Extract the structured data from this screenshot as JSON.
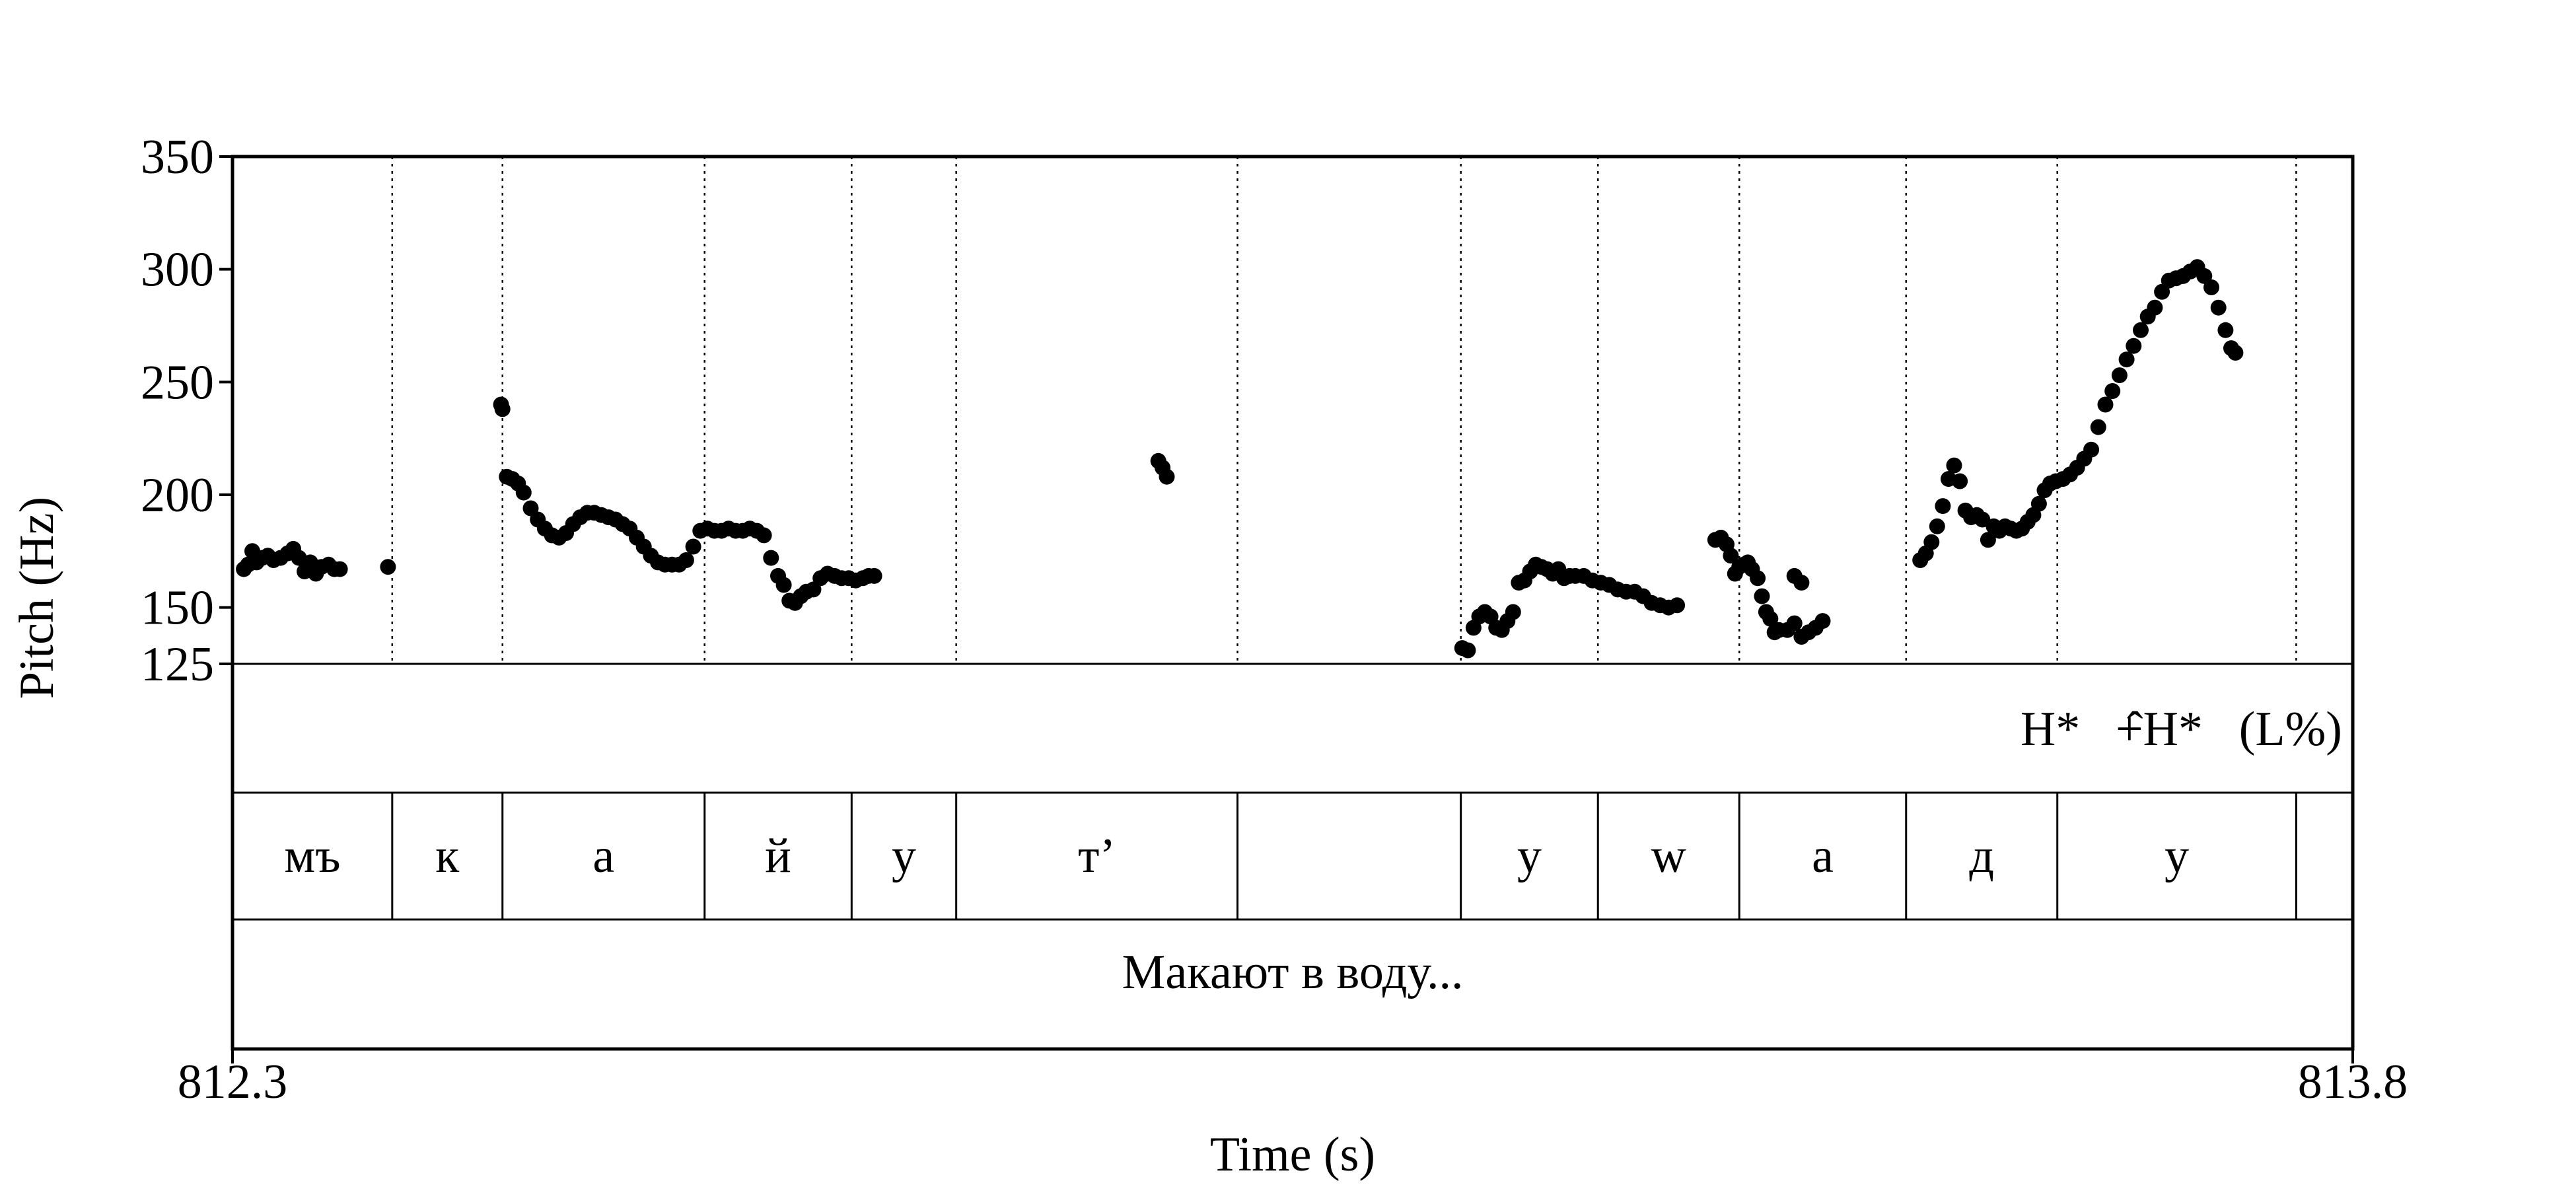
{
  "chart_data": {
    "type": "scatter",
    "title": "",
    "xlabel": "Time (s)",
    "ylabel": "Pitch (Hz)",
    "xlim": [
      812.3,
      813.8
    ],
    "ylim": [
      125,
      350
    ],
    "x_tick_labels": [
      "812.3",
      "813.8"
    ],
    "y_ticks": [
      125,
      150,
      200,
      250,
      300,
      350
    ],
    "y_tick_labels": [
      "125",
      "150",
      "200",
      "250",
      "300",
      "350"
    ],
    "grid": false,
    "legend": "none",
    "boundaries": [
      812.413,
      812.491,
      812.634,
      812.738,
      812.812,
      813.011,
      813.169,
      813.266,
      813.366,
      813.484,
      813.591,
      813.76
    ],
    "tones_tier": [
      {
        "x": 813.586,
        "text": "H*"
      },
      {
        "x": 813.642,
        "text": "+"
      },
      {
        "x": 813.667,
        "text": "ˆH*"
      },
      {
        "x": 813.756,
        "text": "(L%)"
      }
    ],
    "phones_tier": [
      {
        "start": 812.3,
        "end": 812.413,
        "text": "мъ"
      },
      {
        "start": 812.413,
        "end": 812.491,
        "text": "к"
      },
      {
        "start": 812.491,
        "end": 812.634,
        "text": "а"
      },
      {
        "start": 812.634,
        "end": 812.738,
        "text": "й"
      },
      {
        "start": 812.738,
        "end": 812.812,
        "text": "у"
      },
      {
        "start": 812.812,
        "end": 813.011,
        "text": "т’"
      },
      {
        "start": 813.011,
        "end": 813.169,
        "text": ""
      },
      {
        "start": 813.169,
        "end": 813.266,
        "text": "у"
      },
      {
        "start": 813.266,
        "end": 813.366,
        "text": "w"
      },
      {
        "start": 813.366,
        "end": 813.484,
        "text": "а"
      },
      {
        "start": 813.484,
        "end": 813.591,
        "text": "д"
      },
      {
        "start": 813.591,
        "end": 813.76,
        "text": "у"
      },
      {
        "start": 813.76,
        "end": 813.8,
        "text": ""
      }
    ],
    "phrase_tier": "Макают в воду...",
    "series": [
      {
        "values": [
          [
            812.308,
            167
          ],
          [
            812.311,
            169
          ],
          [
            812.314,
            175
          ],
          [
            812.317,
            170
          ],
          [
            812.321,
            172
          ],
          [
            812.325,
            173
          ],
          [
            812.329,
            171
          ],
          [
            812.334,
            172
          ],
          [
            812.339,
            174
          ],
          [
            812.343,
            176
          ],
          [
            812.347,
            172
          ],
          [
            812.351,
            166
          ],
          [
            812.355,
            170
          ],
          [
            812.359,
            165
          ],
          [
            812.363,
            168
          ],
          [
            812.368,
            169
          ],
          [
            812.372,
            167
          ],
          [
            812.376,
            167
          ],
          [
            812.41,
            168
          ],
          [
            812.49,
            240
          ],
          [
            812.491,
            238
          ],
          [
            812.494,
            208
          ],
          [
            812.498,
            207
          ],
          [
            812.502,
            205
          ],
          [
            812.506,
            201
          ],
          [
            812.511,
            194
          ],
          [
            812.516,
            189
          ],
          [
            812.521,
            185
          ],
          [
            812.526,
            182
          ],
          [
            812.531,
            181
          ],
          [
            812.536,
            183
          ],
          [
            812.541,
            187
          ],
          [
            812.546,
            190
          ],
          [
            812.551,
            192
          ],
          [
            812.556,
            192
          ],
          [
            812.561,
            191
          ],
          [
            812.566,
            190
          ],
          [
            812.571,
            189
          ],
          [
            812.576,
            187
          ],
          [
            812.581,
            185
          ],
          [
            812.586,
            181
          ],
          [
            812.591,
            177
          ],
          [
            812.596,
            173
          ],
          [
            812.601,
            170
          ],
          [
            812.606,
            169
          ],
          [
            812.611,
            169
          ],
          [
            812.616,
            169
          ],
          [
            812.621,
            171
          ],
          [
            812.626,
            177
          ],
          [
            812.631,
            184
          ],
          [
            812.636,
            185
          ],
          [
            812.641,
            184
          ],
          [
            812.646,
            184
          ],
          [
            812.651,
            185
          ],
          [
            812.656,
            184
          ],
          [
            812.661,
            184
          ],
          [
            812.666,
            185
          ],
          [
            812.671,
            184
          ],
          [
            812.676,
            182
          ],
          [
            812.681,
            172
          ],
          [
            812.686,
            164
          ],
          [
            812.69,
            160
          ],
          [
            812.694,
            153
          ],
          [
            812.698,
            152
          ],
          [
            812.702,
            155
          ],
          [
            812.706,
            157
          ],
          [
            812.711,
            158
          ],
          [
            812.716,
            163
          ],
          [
            812.721,
            165
          ],
          [
            812.726,
            164
          ],
          [
            812.731,
            163
          ],
          [
            812.736,
            163
          ],
          [
            812.741,
            162
          ],
          [
            812.746,
            163
          ],
          [
            812.75,
            164
          ],
          [
            812.754,
            164
          ],
          [
            812.955,
            215
          ],
          [
            812.958,
            212
          ],
          [
            812.961,
            208
          ],
          [
            813.17,
            132
          ],
          [
            813.174,
            131
          ],
          [
            813.178,
            141
          ],
          [
            813.182,
            146
          ],
          [
            813.186,
            148
          ],
          [
            813.19,
            146
          ],
          [
            813.194,
            141
          ],
          [
            813.198,
            140
          ],
          [
            813.202,
            144
          ],
          [
            813.206,
            148
          ],
          [
            813.21,
            161
          ],
          [
            813.214,
            162
          ],
          [
            813.218,
            166
          ],
          [
            813.222,
            169
          ],
          [
            813.226,
            168
          ],
          [
            813.23,
            167
          ],
          [
            813.234,
            165
          ],
          [
            813.238,
            167
          ],
          [
            813.242,
            163
          ],
          [
            813.246,
            164
          ],
          [
            813.25,
            164
          ],
          [
            813.256,
            164
          ],
          [
            813.262,
            162
          ],
          [
            813.268,
            161
          ],
          [
            813.274,
            160
          ],
          [
            813.28,
            158
          ],
          [
            813.286,
            157
          ],
          [
            813.292,
            157
          ],
          [
            813.298,
            155
          ],
          [
            813.304,
            152
          ],
          [
            813.31,
            151
          ],
          [
            813.316,
            150
          ],
          [
            813.322,
            151
          ],
          [
            813.349,
            180
          ],
          [
            813.353,
            181
          ],
          [
            813.357,
            178
          ],
          [
            813.36,
            173
          ],
          [
            813.363,
            165
          ],
          [
            813.366,
            168
          ],
          [
            813.369,
            169
          ],
          [
            813.372,
            170
          ],
          [
            813.375,
            167
          ],
          [
            813.379,
            163
          ],
          [
            813.382,
            155
          ],
          [
            813.385,
            148
          ],
          [
            813.388,
            145
          ],
          [
            813.391,
            139
          ],
          [
            813.394,
            140
          ],
          [
            813.4,
            140
          ],
          [
            813.405,
            143
          ],
          [
            813.41,
            137
          ],
          [
            813.415,
            139
          ],
          [
            813.42,
            141
          ],
          [
            813.425,
            144
          ],
          [
            813.405,
            164
          ],
          [
            813.41,
            161
          ],
          [
            813.494,
            171
          ],
          [
            813.498,
            174
          ],
          [
            813.502,
            179
          ],
          [
            813.506,
            186
          ],
          [
            813.51,
            195
          ],
          [
            813.514,
            207
          ],
          [
            813.518,
            213
          ],
          [
            813.522,
            206
          ],
          [
            813.526,
            193
          ],
          [
            813.53,
            190
          ],
          [
            813.534,
            191
          ],
          [
            813.538,
            189
          ],
          [
            813.542,
            180
          ],
          [
            813.546,
            186
          ],
          [
            813.55,
            184
          ],
          [
            813.554,
            186
          ],
          [
            813.558,
            185
          ],
          [
            813.562,
            184
          ],
          [
            813.566,
            185
          ],
          [
            813.57,
            188
          ],
          [
            813.574,
            191
          ],
          [
            813.578,
            196
          ],
          [
            813.582,
            202
          ],
          [
            813.586,
            205
          ],
          [
            813.59,
            206
          ],
          [
            813.595,
            207
          ],
          [
            813.6,
            209
          ],
          [
            813.605,
            212
          ],
          [
            813.61,
            216
          ],
          [
            813.615,
            220
          ],
          [
            813.62,
            230
          ],
          [
            813.625,
            240
          ],
          [
            813.63,
            246
          ],
          [
            813.635,
            253
          ],
          [
            813.64,
            260
          ],
          [
            813.645,
            266
          ],
          [
            813.65,
            273
          ],
          [
            813.655,
            279
          ],
          [
            813.66,
            283
          ],
          [
            813.665,
            290
          ],
          [
            813.67,
            295
          ],
          [
            813.675,
            296
          ],
          [
            813.68,
            297
          ],
          [
            813.685,
            299
          ],
          [
            813.69,
            301
          ],
          [
            813.695,
            297
          ],
          [
            813.7,
            292
          ],
          [
            813.705,
            283
          ],
          [
            813.71,
            273
          ],
          [
            813.714,
            265
          ],
          [
            813.717,
            263
          ]
        ]
      }
    ]
  }
}
